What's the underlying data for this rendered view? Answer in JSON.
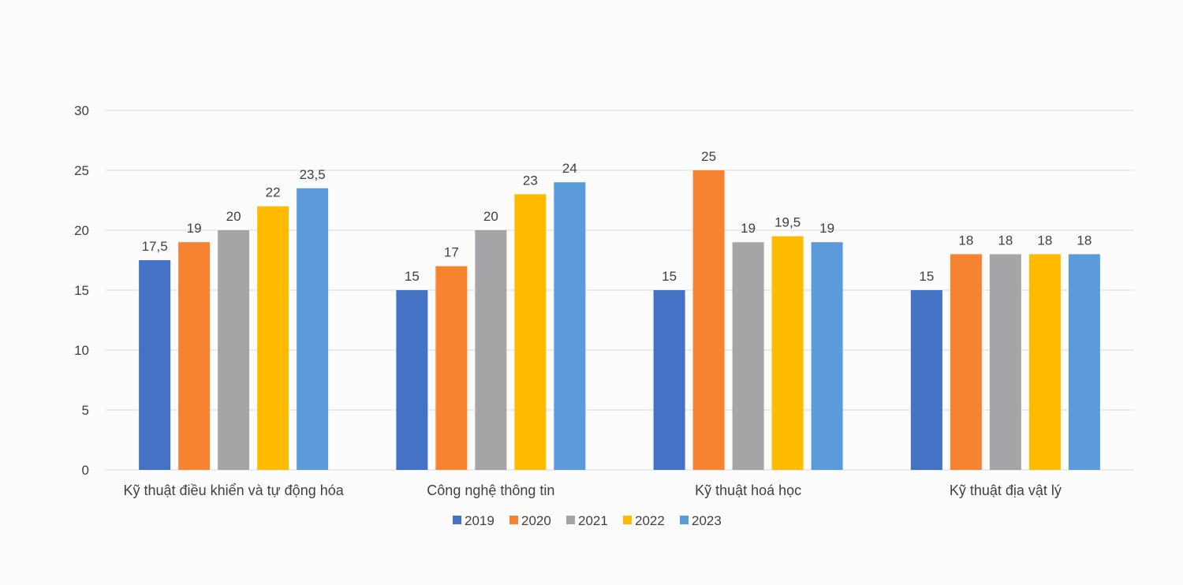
{
  "chart_data": {
    "type": "bar",
    "categories": [
      "Kỹ thuật điều khiển và tự động hóa",
      "Công nghệ thông tin",
      "Kỹ thuật hoá học",
      "Kỹ thuật địa vật lý"
    ],
    "series": [
      {
        "name": "2019",
        "color": "#4472c4",
        "values": [
          17.5,
          15,
          15,
          15
        ],
        "labels": [
          "17,5",
          "15",
          "15",
          "15"
        ]
      },
      {
        "name": "2020",
        "color": "#f5832f",
        "values": [
          19,
          17,
          25,
          18
        ],
        "labels": [
          "19",
          "17",
          "25",
          "18"
        ]
      },
      {
        "name": "2021",
        "color": "#a5a4a7",
        "values": [
          20,
          20,
          19,
          18
        ],
        "labels": [
          "20",
          "20",
          "19",
          "18"
        ]
      },
      {
        "name": "2022",
        "color": "#ffbb00",
        "values": [
          22,
          23,
          19.5,
          18
        ],
        "labels": [
          "22",
          "23",
          "19,5",
          "18"
        ]
      },
      {
        "name": "2023",
        "color": "#5b9bdb",
        "values": [
          23.5,
          24,
          19,
          18
        ],
        "labels": [
          "23,5",
          "24",
          "19",
          "18"
        ]
      }
    ],
    "yticks": [
      "0",
      "5",
      "10",
      "15",
      "20",
      "25",
      "30"
    ],
    "ylim": [
      0,
      30
    ],
    "grid": true,
    "legend": "bottom",
    "title": "",
    "xlabel": "",
    "ylabel": ""
  }
}
